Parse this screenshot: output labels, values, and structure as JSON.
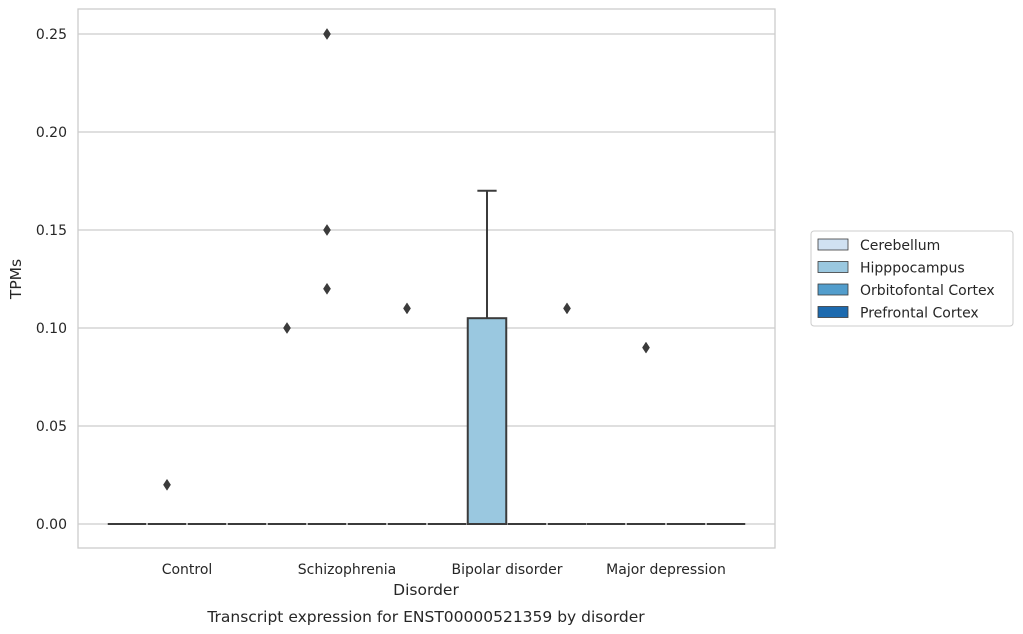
{
  "chart_data": {
    "type": "box",
    "caption": "Transcript expression for ENST00000521359 by disorder",
    "xlabel": "Disorder",
    "ylabel": "TPMs",
    "ylim": [
      -0.012,
      0.263
    ],
    "yticks": [
      0.0,
      0.05,
      0.1,
      0.15,
      0.2,
      0.25
    ],
    "ytick_labels": [
      "0.00",
      "0.05",
      "0.10",
      "0.15",
      "0.20",
      "0.25"
    ],
    "grid": true,
    "legend_position": "right",
    "categories": [
      "Control",
      "Schizophrenia",
      "Bipolar disorder",
      "Major depression"
    ],
    "series": [
      {
        "name": "Cerebellum",
        "color": "#d0e1f2",
        "boxes": [
          {
            "q1": 0,
            "median": 0,
            "q3": 0,
            "whislo": 0,
            "whishi": 0,
            "fliers": []
          },
          {
            "q1": 0,
            "median": 0,
            "q3": 0,
            "whislo": 0,
            "whishi": 0,
            "fliers": [
              0.1
            ]
          },
          {
            "q1": 0,
            "median": 0,
            "q3": 0,
            "whislo": 0,
            "whishi": 0,
            "fliers": []
          },
          {
            "q1": 0,
            "median": 0,
            "q3": 0,
            "whislo": 0,
            "whishi": 0,
            "fliers": []
          }
        ]
      },
      {
        "name": "Hipppocampus",
        "color": "#9ac8e0",
        "boxes": [
          {
            "q1": 0,
            "median": 0,
            "q3": 0,
            "whislo": 0,
            "whishi": 0,
            "fliers": [
              0.02
            ]
          },
          {
            "q1": 0,
            "median": 0,
            "q3": 0,
            "whislo": 0,
            "whishi": 0,
            "fliers": [
              0.25,
              0.15,
              0.12
            ]
          },
          {
            "q1": 0,
            "median": 0,
            "q3": 0.105,
            "whislo": 0,
            "whishi": 0.17,
            "fliers": []
          },
          {
            "q1": 0,
            "median": 0,
            "q3": 0,
            "whislo": 0,
            "whishi": 0,
            "fliers": [
              0.09
            ]
          }
        ]
      },
      {
        "name": "Orbitofontal Cortex",
        "color": "#529dcc",
        "boxes": [
          {
            "q1": 0,
            "median": 0,
            "q3": 0,
            "whislo": 0,
            "whishi": 0,
            "fliers": []
          },
          {
            "q1": 0,
            "median": 0,
            "q3": 0,
            "whislo": 0,
            "whishi": 0,
            "fliers": []
          },
          {
            "q1": 0,
            "median": 0,
            "q3": 0,
            "whislo": 0,
            "whishi": 0,
            "fliers": []
          },
          {
            "q1": 0,
            "median": 0,
            "q3": 0,
            "whislo": 0,
            "whishi": 0,
            "fliers": []
          }
        ]
      },
      {
        "name": "Prefrontal Cortex",
        "color": "#1c6aaf",
        "boxes": [
          {
            "q1": 0,
            "median": 0,
            "q3": 0,
            "whislo": 0,
            "whishi": 0,
            "fliers": []
          },
          {
            "q1": 0,
            "median": 0,
            "q3": 0,
            "whislo": 0,
            "whishi": 0,
            "fliers": [
              0.11
            ]
          },
          {
            "q1": 0,
            "median": 0,
            "q3": 0,
            "whislo": 0,
            "whishi": 0,
            "fliers": [
              0.11
            ]
          },
          {
            "q1": 0,
            "median": 0,
            "q3": 0,
            "whislo": 0,
            "whishi": 0,
            "fliers": []
          }
        ]
      }
    ]
  }
}
